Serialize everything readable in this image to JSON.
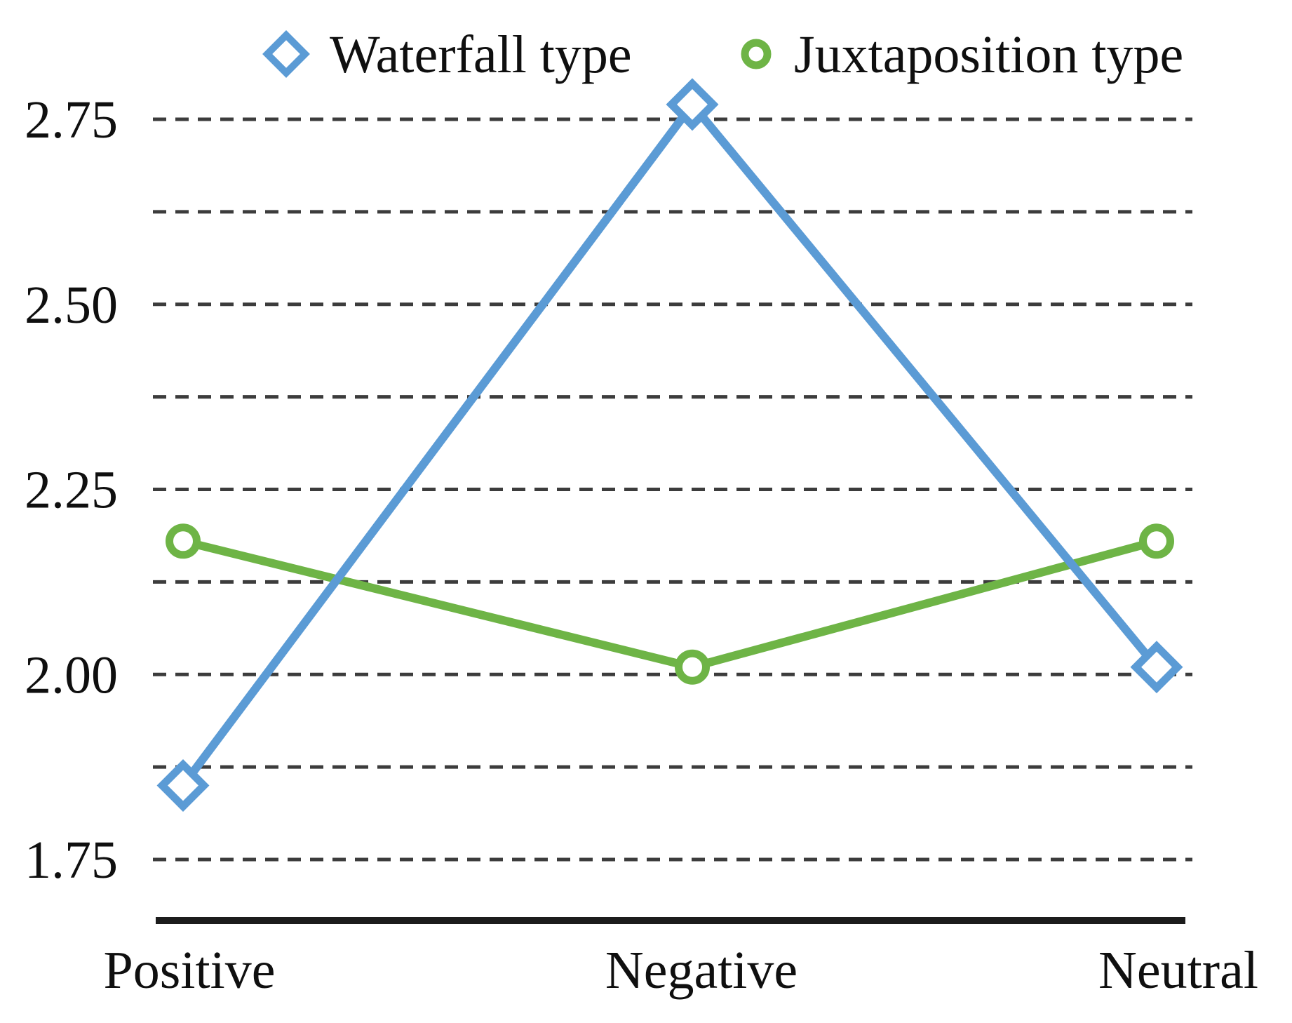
{
  "chart_data": {
    "type": "line",
    "categories": [
      "Positive",
      "Negative",
      "Neutral"
    ],
    "series": [
      {
        "name": "Waterfall type",
        "marker": "diamond",
        "color": "#5B9BD5",
        "values": [
          1.85,
          2.77,
          2.01
        ]
      },
      {
        "name": "Juxtaposition type",
        "marker": "circle",
        "color": "#6EB446",
        "values": [
          2.18,
          2.01,
          2.18
        ]
      }
    ],
    "title": "",
    "xlabel": "",
    "ylabel": "",
    "ylim": [
      1.75,
      2.75
    ],
    "ytick_values": [
      2.75,
      2.5,
      2.25,
      2.0,
      1.75
    ],
    "ytick_labels": [
      "2.75",
      "2.50",
      "2.25",
      "2.00",
      "1.75"
    ],
    "minor_grid_step": 0.125,
    "grid": "horizontal-dashed",
    "legend_position": "top",
    "colors": {
      "grid_line": "#3c3c3c",
      "axis_line": "#1c1c1c",
      "text": "#0f0f0f",
      "marker_fill": "#ffffff",
      "background": "#ffffff"
    }
  }
}
